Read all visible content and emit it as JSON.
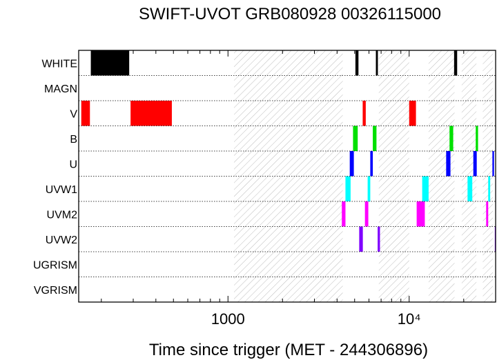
{
  "chart_data": {
    "type": "timeline",
    "title": "SWIFT-UVOT GRB080928 00326115000",
    "xlabel": "Time since trigger (MET - 244306896)",
    "ylabel": "",
    "x_scale": "log",
    "xlim": [
      150,
      30000
    ],
    "x_ticks": [
      {
        "value": 1000,
        "label": "1000"
      },
      {
        "value": 10000,
        "label": "10⁴"
      }
    ],
    "filters": [
      "WHITE",
      "MAGN",
      "V",
      "B",
      "U",
      "UVW1",
      "UVM2",
      "UVW2",
      "UGRISM",
      "VGRISM"
    ],
    "colors": {
      "WHITE": "#000000",
      "V": "#ff0000",
      "B": "#00e000",
      "U": "#0000ff",
      "UVW1": "#00ffff",
      "UVM2": "#ff00ff",
      "UVW2": "#8000ff"
    },
    "hatched_intervals": [
      [
        1080,
        4300
      ],
      [
        6800,
        10000
      ],
      [
        12800,
        17800
      ],
      [
        19500,
        23500
      ],
      [
        25500,
        29000
      ]
    ],
    "exposures": [
      {
        "filter": "WHITE",
        "start": 175,
        "end": 285
      },
      {
        "filter": "WHITE",
        "start": 5050,
        "end": 5250
      },
      {
        "filter": "WHITE",
        "start": 6550,
        "end": 6720
      },
      {
        "filter": "WHITE",
        "start": 17700,
        "end": 18400
      },
      {
        "filter": "V",
        "start": 155,
        "end": 173
      },
      {
        "filter": "V",
        "start": 290,
        "end": 490
      },
      {
        "filter": "V",
        "start": 5540,
        "end": 5760
      },
      {
        "filter": "V",
        "start": 10000,
        "end": 10900
      },
      {
        "filter": "B",
        "start": 4900,
        "end": 5200
      },
      {
        "filter": "B",
        "start": 6300,
        "end": 6600
      },
      {
        "filter": "B",
        "start": 16700,
        "end": 17500
      },
      {
        "filter": "B",
        "start": 23300,
        "end": 24000
      },
      {
        "filter": "U",
        "start": 4700,
        "end": 4950
      },
      {
        "filter": "U",
        "start": 6100,
        "end": 6300
      },
      {
        "filter": "U",
        "start": 16000,
        "end": 16900
      },
      {
        "filter": "U",
        "start": 22600,
        "end": 23600
      },
      {
        "filter": "U",
        "start": 28800,
        "end": 29400
      },
      {
        "filter": "UVW1",
        "start": 4450,
        "end": 4750
      },
      {
        "filter": "UVW1",
        "start": 5900,
        "end": 6100
      },
      {
        "filter": "UVW1",
        "start": 11800,
        "end": 12800
      },
      {
        "filter": "UVW1",
        "start": 21000,
        "end": 22300
      },
      {
        "filter": "UVW1",
        "start": 27300,
        "end": 28000
      },
      {
        "filter": "UVM2",
        "start": 4250,
        "end": 4450
      },
      {
        "filter": "UVM2",
        "start": 5700,
        "end": 5950
      },
      {
        "filter": "UVM2",
        "start": 11000,
        "end": 12200
      },
      {
        "filter": "UVM2",
        "start": 26600,
        "end": 27300
      },
      {
        "filter": "UVW2",
        "start": 5300,
        "end": 5550
      },
      {
        "filter": "UVW2",
        "start": 6700,
        "end": 6900
      },
      {
        "filter": "UVW2",
        "start": 29700,
        "end": 30000
      }
    ]
  }
}
